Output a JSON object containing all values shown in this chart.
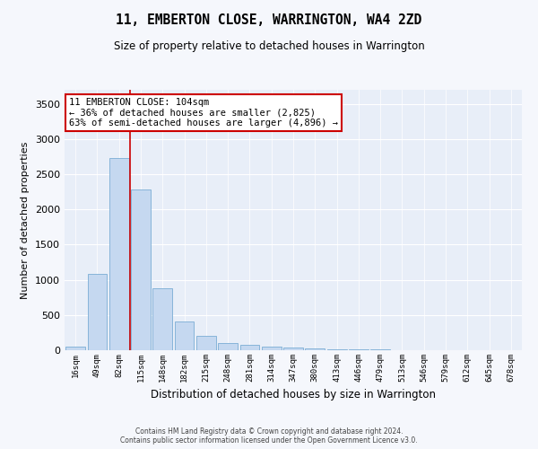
{
  "title": "11, EMBERTON CLOSE, WARRINGTON, WA4 2ZD",
  "subtitle": "Size of property relative to detached houses in Warrington",
  "xlabel": "Distribution of detached houses by size in Warrington",
  "ylabel": "Number of detached properties",
  "bar_color": "#c5d8f0",
  "bar_edge_color": "#7aadd4",
  "background_color": "#e8eef8",
  "fig_background_color": "#f5f7fc",
  "grid_color": "#ffffff",
  "categories": [
    "16sqm",
    "49sqm",
    "82sqm",
    "115sqm",
    "148sqm",
    "182sqm",
    "215sqm",
    "248sqm",
    "281sqm",
    "314sqm",
    "347sqm",
    "380sqm",
    "413sqm",
    "446sqm",
    "479sqm",
    "513sqm",
    "546sqm",
    "579sqm",
    "612sqm",
    "645sqm",
    "678sqm"
  ],
  "values": [
    50,
    1080,
    2730,
    2290,
    880,
    410,
    200,
    105,
    80,
    55,
    35,
    25,
    18,
    10,
    8,
    5,
    3,
    2,
    1,
    1,
    1
  ],
  "ylim": [
    0,
    3700
  ],
  "yticks": [
    0,
    500,
    1000,
    1500,
    2000,
    2500,
    3000,
    3500
  ],
  "property_bin_index": 2,
  "annotation_text": "11 EMBERTON CLOSE: 104sqm\n← 36% of detached houses are smaller (2,825)\n63% of semi-detached houses are larger (4,896) →",
  "annotation_box_color": "#ffffff",
  "annotation_box_edge": "#cc0000",
  "vline_color": "#cc0000",
  "footer_line1": "Contains HM Land Registry data © Crown copyright and database right 2024.",
  "footer_line2": "Contains public sector information licensed under the Open Government Licence v3.0."
}
